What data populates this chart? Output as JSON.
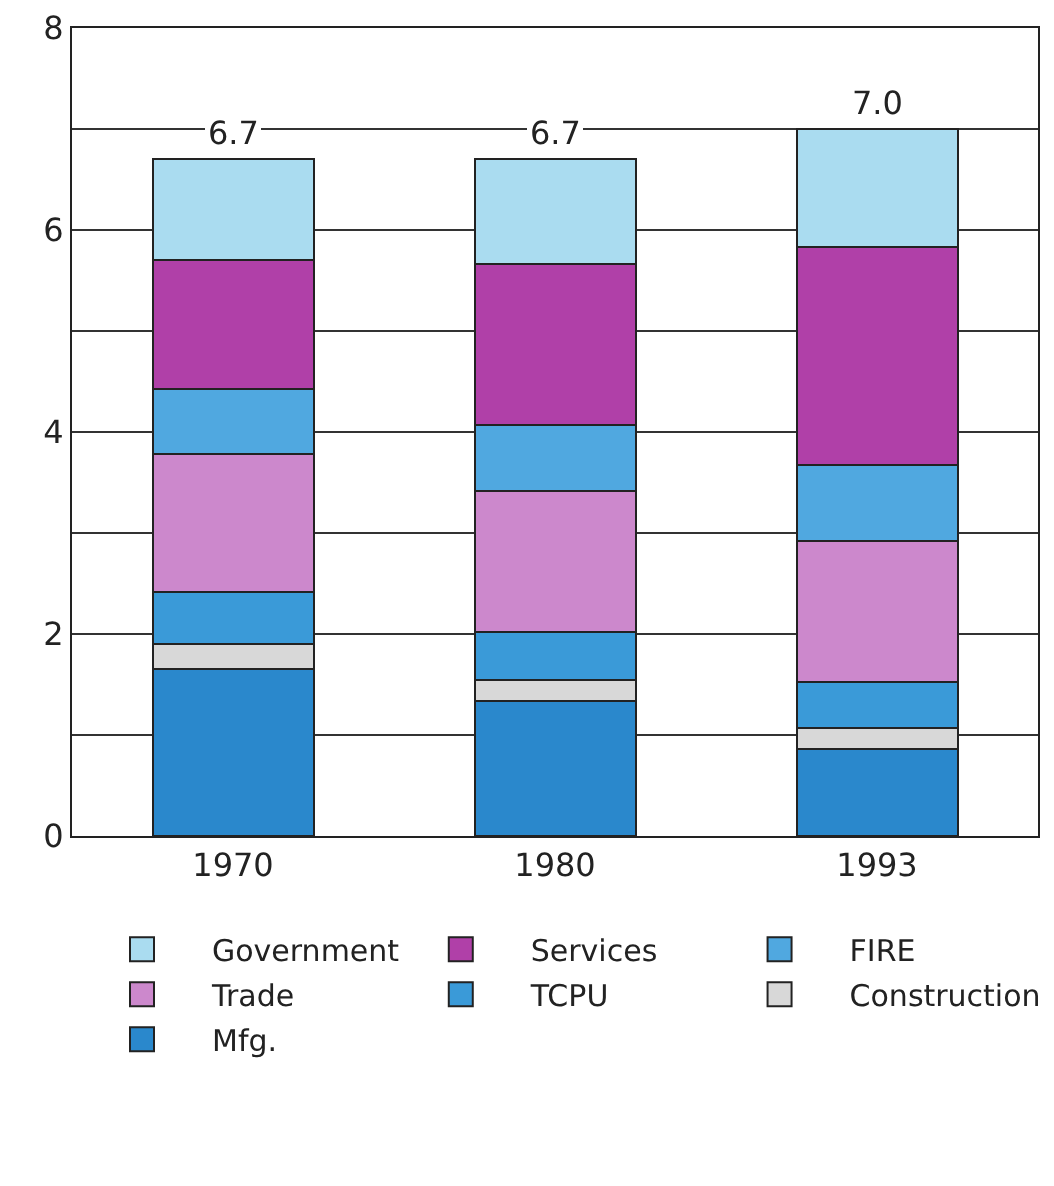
{
  "chart_data": {
    "type": "bar",
    "stacked": true,
    "categories": [
      "1970",
      "1980",
      "1993"
    ],
    "series": [
      {
        "name": "Mfg.",
        "color": "#2a88cc",
        "values": [
          1.65,
          1.34,
          0.86
        ]
      },
      {
        "name": "Construction",
        "color": "#d8d8d8",
        "values": [
          0.25,
          0.2,
          0.21
        ]
      },
      {
        "name": "TCPU",
        "color": "#3a9ad8",
        "values": [
          0.52,
          0.48,
          0.45
        ]
      },
      {
        "name": "Trade",
        "color": "#cc88cc",
        "values": [
          1.36,
          1.4,
          1.4
        ]
      },
      {
        "name": "FIRE",
        "color": "#50a8e0",
        "values": [
          0.65,
          0.65,
          0.75
        ]
      },
      {
        "name": "Services",
        "color": "#b040a8",
        "values": [
          1.27,
          1.59,
          2.16
        ]
      },
      {
        "name": "Government",
        "color": "#aadcf0",
        "values": [
          1.0,
          1.04,
          1.17
        ]
      }
    ],
    "totals": [
      "6.7",
      "6.7",
      "7.0"
    ],
    "ylim": [
      0,
      8
    ],
    "yticks": [
      0,
      {
        "value": 1,
        "label": null
      },
      2,
      {
        "value": 3,
        "label": null
      },
      4,
      {
        "value": 5,
        "label": null
      },
      6,
      {
        "value": 7,
        "label": null
      },
      8
    ],
    "grid": "y",
    "legend": "bottom"
  }
}
